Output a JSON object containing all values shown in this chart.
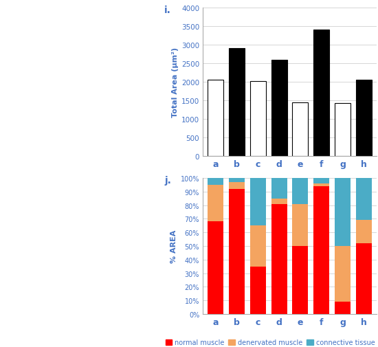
{
  "bar_values": [
    2050,
    2900,
    2020,
    2600,
    1450,
    3400,
    1430,
    2050
  ],
  "bar_colors": [
    "white",
    "black",
    "white",
    "black",
    "white",
    "black",
    "white",
    "black"
  ],
  "bar_edgecolors": [
    "black",
    "black",
    "black",
    "black",
    "black",
    "black",
    "black",
    "black"
  ],
  "bar_labels": [
    "a",
    "b",
    "c",
    "d",
    "e",
    "f",
    "g",
    "h"
  ],
  "bar_ylim": [
    0,
    4000
  ],
  "bar_yticks": [
    0,
    500,
    1000,
    1500,
    2000,
    2500,
    3000,
    3500,
    4000
  ],
  "bar_ylabel": "Total Area (μm²)",
  "bar_title": "i.",
  "stacked_categories": [
    "a",
    "b",
    "c",
    "d",
    "e",
    "f",
    "g",
    "h"
  ],
  "normal_muscle": [
    0.68,
    0.92,
    0.35,
    0.81,
    0.5,
    0.94,
    0.09,
    0.52
  ],
  "denervated_muscle": [
    0.27,
    0.05,
    0.3,
    0.04,
    0.31,
    0.02,
    0.41,
    0.17
  ],
  "connective_tissue": [
    0.05,
    0.03,
    0.35,
    0.15,
    0.19,
    0.04,
    0.5,
    0.31
  ],
  "stacked_ylabel": "% AREA",
  "stacked_title": "j.",
  "color_normal": "#FF0000",
  "color_denervated": "#F4A460",
  "color_connective": "#4BACC6",
  "legend_labels": [
    "normal muscle",
    "denervated muscle",
    "connective tissue"
  ],
  "yticks_pct": [
    0,
    10,
    20,
    30,
    40,
    50,
    60,
    70,
    80,
    90,
    100
  ],
  "text_color": "#4472C4",
  "grid_color": "#d0d0d0",
  "spine_color": "#aaaaaa"
}
